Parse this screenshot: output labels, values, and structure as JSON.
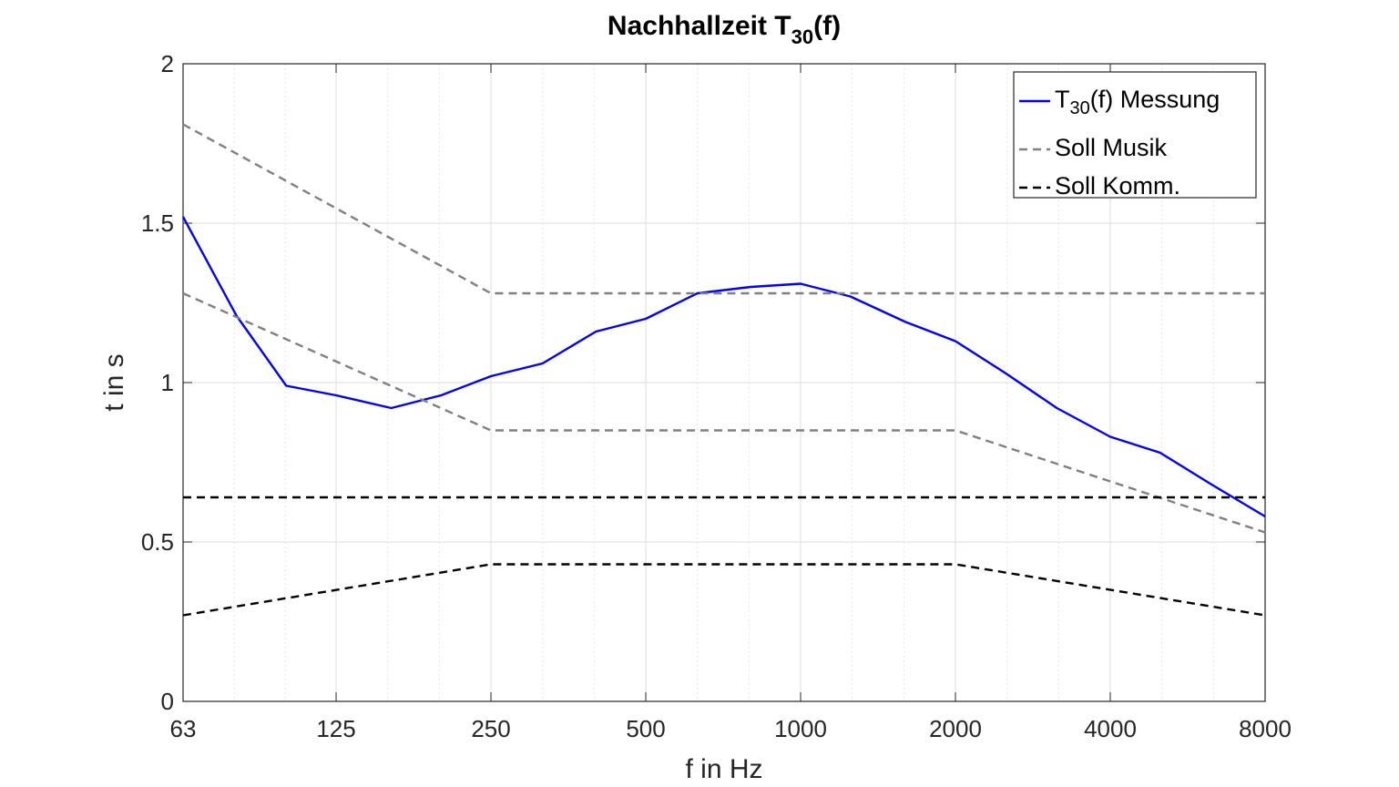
{
  "chart_data": {
    "type": "line",
    "title": "Nachhallzeit T",
    "title_subscript": "30",
    "title_suffix": "(f)",
    "xlabel": "f in Hz",
    "ylabel": "t in s",
    "xscale": "log2",
    "xlim": [
      63,
      8000
    ],
    "ylim": [
      0,
      2
    ],
    "xticks": [
      63,
      125,
      250,
      500,
      1000,
      2000,
      4000,
      8000
    ],
    "xtick_labels": [
      "63",
      "125",
      "250",
      "500",
      "1000",
      "2000",
      "4000",
      "8000"
    ],
    "yticks": [
      0,
      0.5,
      1,
      1.5,
      2
    ],
    "ytick_labels": [
      "0",
      "0.5",
      "1",
      "1.5",
      "2"
    ],
    "grid": true,
    "minor_grid": true,
    "legend_position": "top-right",
    "legend": [
      {
        "prefix": "T",
        "sub": "30",
        "suffix": "(f) Messung"
      },
      {
        "prefix": "Soll Musik",
        "sub": "",
        "suffix": ""
      },
      {
        "prefix": "Soll Komm.",
        "sub": "",
        "suffix": ""
      }
    ],
    "series": [
      {
        "legend_index": 0,
        "color": "#0000FF",
        "style": "solid",
        "x": [
          63,
          80,
          100,
          125,
          160,
          200,
          250,
          315,
          400,
          500,
          630,
          800,
          1000,
          1250,
          1600,
          2000,
          2500,
          3150,
          4000,
          5000,
          6300,
          8000
        ],
        "y": [
          1.52,
          1.21,
          0.99,
          0.96,
          0.92,
          0.96,
          1.02,
          1.06,
          1.16,
          1.2,
          1.28,
          1.3,
          1.31,
          1.27,
          1.19,
          1.13,
          1.03,
          0.92,
          0.83,
          0.78,
          0.68,
          0.58
        ]
      },
      {
        "legend_index": 1,
        "color": "#808080",
        "style": "dashed",
        "x": [
          63,
          250,
          8000
        ],
        "y": [
          1.81,
          1.28,
          1.28
        ]
      },
      {
        "legend_index": -1,
        "color": "#808080",
        "style": "dashed",
        "x": [
          63,
          250,
          2000,
          8000
        ],
        "y": [
          1.28,
          0.85,
          0.85,
          0.53
        ]
      },
      {
        "legend_index": 2,
        "color": "#000000",
        "style": "dashed",
        "x": [
          63,
          8000
        ],
        "y": [
          0.64,
          0.64
        ]
      },
      {
        "legend_index": -1,
        "color": "#000000",
        "style": "dashed",
        "x": [
          63,
          250,
          2000,
          8000
        ],
        "y": [
          0.27,
          0.43,
          0.43,
          0.27
        ]
      }
    ]
  }
}
